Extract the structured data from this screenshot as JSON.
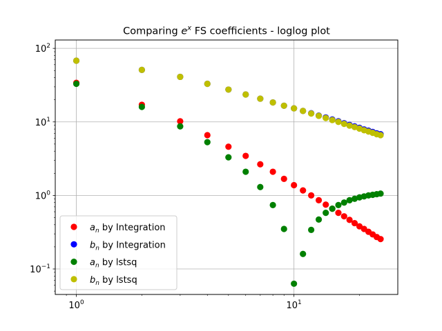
{
  "chart_data": {
    "type": "scatter",
    "title": "Comparing e^x FS coefficients - loglog plot",
    "title_parts": {
      "before": "Comparing ",
      "base": "e",
      "exponent": "x",
      "after": " FS coefficients - loglog plot"
    },
    "xlabel": "",
    "ylabel": "",
    "xscale": "log",
    "yscale": "log",
    "xlim": [
      0.8,
      30
    ],
    "ylim": [
      0.045,
      130
    ],
    "grid": true,
    "legend_position": "lower-left",
    "x_ticks": [
      {
        "value": 1,
        "mantissa": "10",
        "exp": "0"
      },
      {
        "value": 10,
        "mantissa": "10",
        "exp": "1"
      }
    ],
    "y_ticks": [
      {
        "value": 0.1,
        "mantissa": "10",
        "exp": "−1"
      },
      {
        "value": 1,
        "mantissa": "10",
        "exp": "0"
      },
      {
        "value": 10,
        "mantissa": "10",
        "exp": "1"
      },
      {
        "value": 100,
        "mantissa": "10",
        "exp": "2"
      }
    ],
    "x": [
      1,
      2,
      3,
      4,
      5,
      6,
      7,
      8,
      9,
      10,
      11,
      12,
      13,
      14,
      15,
      16,
      17,
      18,
      19,
      20,
      21,
      22,
      23,
      24,
      25
    ],
    "series": [
      {
        "name": "a_n by Integration",
        "label_base": "a",
        "label_sub": "n",
        "label_rest": " by Integration",
        "color": "#ff0000",
        "values": [
          34,
          17.1,
          10.2,
          6.6,
          4.6,
          3.45,
          2.65,
          2.1,
          1.68,
          1.38,
          1.17,
          1.0,
          0.86,
          0.75,
          0.66,
          0.58,
          0.52,
          0.465,
          0.42,
          0.38,
          0.35,
          0.32,
          0.295,
          0.272,
          0.255
        ]
      },
      {
        "name": "b_n by Integration",
        "label_base": "b",
        "label_sub": "n",
        "label_rest": " by Integration",
        "color": "#0000ff",
        "values": [
          68,
          51,
          41,
          33,
          27.5,
          23.6,
          20.7,
          18.4,
          16.6,
          15.3,
          14.1,
          13.1,
          12.2,
          11.5,
          10.8,
          10.2,
          9.6,
          9.1,
          8.7,
          8.3,
          7.9,
          7.6,
          7.3,
          7.0,
          6.8
        ]
      },
      {
        "name": "a_n by lstsq",
        "label_base": "a",
        "label_sub": "n",
        "label_rest": " by lstsq",
        "color": "#008000",
        "values": [
          33,
          16,
          8.7,
          5.3,
          3.3,
          2.1,
          1.3,
          0.74,
          0.35,
          0.063,
          0.16,
          0.34,
          0.47,
          0.58,
          0.66,
          0.74,
          0.8,
          0.86,
          0.9,
          0.94,
          0.97,
          1.0,
          1.02,
          1.04,
          1.06
        ]
      },
      {
        "name": "b_n by lstsq",
        "label_base": "b",
        "label_sub": "n",
        "label_rest": " by lstsq",
        "color": "#bfbf00",
        "values": [
          68,
          51,
          41,
          33,
          27.5,
          23.6,
          20.7,
          18.4,
          16.6,
          15.3,
          14.1,
          13.0,
          12.1,
          11.3,
          10.6,
          10.0,
          9.4,
          8.9,
          8.5,
          8.1,
          7.7,
          7.4,
          7.1,
          6.8,
          6.6
        ]
      }
    ]
  }
}
